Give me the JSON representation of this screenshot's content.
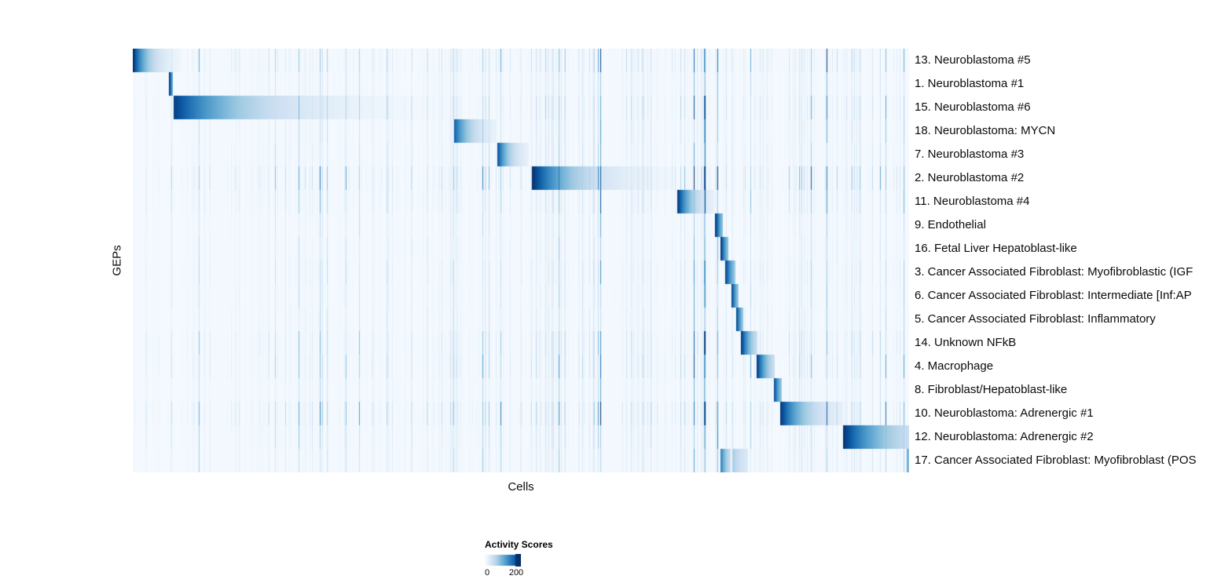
{
  "chart_data": {
    "type": "heatmap",
    "title": "",
    "xlabel": "Cells",
    "ylabel": "GEPs",
    "legend": {
      "title": "Activity Scores",
      "min": 0,
      "max": 200,
      "min_label": "0",
      "max_label": "200",
      "position": "bottom"
    },
    "colormap": "Blues",
    "colormap_stops": [
      "#f7fbff",
      "#deebf7",
      "#c6dbef",
      "#9ecae1",
      "#6baed6",
      "#4292c6",
      "#2171b5",
      "#08519c",
      "#08306b"
    ],
    "grid": false,
    "seed": 1337,
    "row_noise": [
      1.0,
      0.5,
      0.9,
      0.6,
      0.6,
      1.3,
      0.8,
      0.45,
      0.5,
      0.6,
      0.5,
      0.5,
      0.9,
      0.9,
      0.5,
      1.2,
      0.7,
      0.6
    ],
    "rows": [
      {
        "label": "13. Neuroblastoma #5",
        "blocks": [
          {
            "start": 0.0,
            "end": 0.06,
            "peak": 1.0,
            "decay": 3.0
          }
        ]
      },
      {
        "label": "1. Neuroblastoma #1",
        "blocks": [
          {
            "start": 0.0465,
            "end": 0.0515,
            "peak": 1.0,
            "decay": 0.8
          }
        ]
      },
      {
        "label": "15. Neuroblastoma #6",
        "blocks": [
          {
            "start": 0.052,
            "end": 0.413,
            "peak": 0.95,
            "decay": 4.0
          }
        ]
      },
      {
        "label": "18. Neuroblastoma: MYCN",
        "blocks": [
          {
            "start": 0.413,
            "end": 0.468,
            "peak": 0.85,
            "decay": 2.5
          }
        ]
      },
      {
        "label": "7. Neuroblastoma #3",
        "blocks": [
          {
            "start": 0.469,
            "end": 0.51,
            "peak": 0.9,
            "decay": 2.5
          }
        ]
      },
      {
        "label": "2. Neuroblastoma #2",
        "blocks": [
          {
            "start": 0.514,
            "end": 0.7,
            "peak": 1.0,
            "decay": 3.5
          }
        ]
      },
      {
        "label": "11. Neuroblastoma #4",
        "blocks": [
          {
            "start": 0.701,
            "end": 0.748,
            "peak": 1.0,
            "decay": 2.5
          }
        ]
      },
      {
        "label": "9. Endothelial",
        "blocks": [
          {
            "start": 0.75,
            "end": 0.76,
            "peak": 1.0,
            "decay": 1.0
          }
        ]
      },
      {
        "label": "16. Fetal Liver Hepatoblast-like",
        "blocks": [
          {
            "start": 0.757,
            "end": 0.767,
            "peak": 1.0,
            "decay": 1.0
          }
        ]
      },
      {
        "label": "3. Cancer Associated Fibroblast: Myofibroblastic (IGF",
        "blocks": [
          {
            "start": 0.763,
            "end": 0.776,
            "peak": 0.95,
            "decay": 1.0
          }
        ]
      },
      {
        "label": "6. Cancer Associated Fibroblast: Intermediate [Inf:AP",
        "blocks": [
          {
            "start": 0.771,
            "end": 0.78,
            "peak": 0.95,
            "decay": 1.0
          }
        ]
      },
      {
        "label": "5. Cancer Associated Fibroblast: Inflammatory",
        "blocks": [
          {
            "start": 0.777,
            "end": 0.786,
            "peak": 0.95,
            "decay": 1.0
          }
        ]
      },
      {
        "label": "14. Unknown NFkB",
        "blocks": [
          {
            "start": 0.783,
            "end": 0.804,
            "peak": 1.0,
            "decay": 1.5
          }
        ]
      },
      {
        "label": "4. Macrophage",
        "blocks": [
          {
            "start": 0.803,
            "end": 0.826,
            "peak": 1.0,
            "decay": 1.5
          }
        ]
      },
      {
        "label": "8. Fibroblast/Hepatoblast-like",
        "blocks": [
          {
            "start": 0.825,
            "end": 0.836,
            "peak": 0.95,
            "decay": 1.0
          }
        ]
      },
      {
        "label": "10. Neuroblastoma: Adrenergic #1",
        "blocks": [
          {
            "start": 0.833,
            "end": 0.914,
            "peak": 1.0,
            "decay": 2.5
          }
        ]
      },
      {
        "label": "12. Neuroblastoma: Adrenergic #2",
        "blocks": [
          {
            "start": 0.914,
            "end": 1.0,
            "peak": 1.0,
            "decay": 1.5
          }
        ]
      },
      {
        "label": "17. Cancer Associated Fibroblast: Myofibroblast (POS",
        "blocks": [
          {
            "start": 0.757,
            "end": 0.77,
            "peak": 0.7,
            "decay": 1.2
          },
          {
            "start": 0.772,
            "end": 0.792,
            "peak": 0.35,
            "decay": 1.0
          },
          {
            "start": 0.996,
            "end": 1.0,
            "peak": 0.6,
            "decay": 0.5
          }
        ]
      }
    ]
  }
}
